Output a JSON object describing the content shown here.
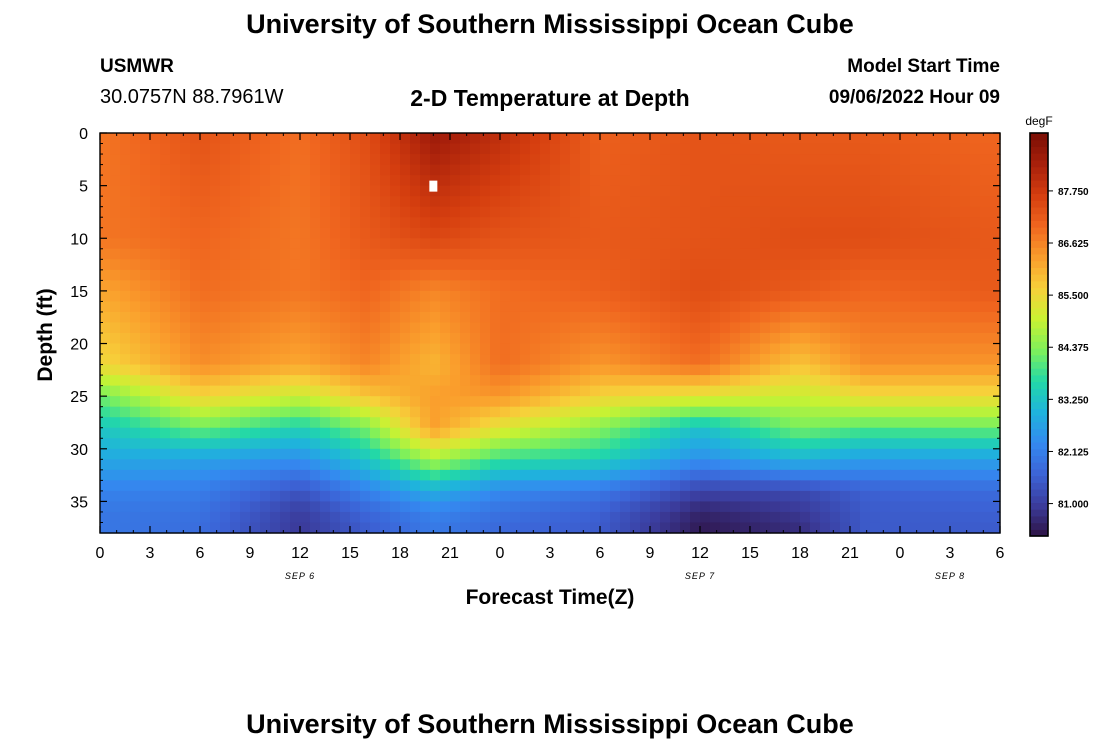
{
  "header": {
    "title": "University of Southern Mississippi Ocean Cube",
    "station": "USMWR",
    "coordinates": "30.0757N  88.7961W",
    "subtitle": "2-D Temperature at Depth",
    "model_start_label": "Model Start Time",
    "model_start_value": "09/06/2022 Hour 09"
  },
  "footer": {
    "title": "University of Southern Mississippi Ocean Cube"
  },
  "colormap": [
    "#2e1243",
    "#3b3c9c",
    "#3c63d6",
    "#3489f0",
    "#1fb3dc",
    "#22d8a8",
    "#7ef05b",
    "#c9f232",
    "#f7d03a",
    "#fa9d2c",
    "#f0661f",
    "#d53e0f",
    "#a8200b",
    "#7a0e04"
  ],
  "chart_data": {
    "type": "heatmap",
    "xlabel": "Forecast Time(Z)",
    "ylabel": "Depth (ft)",
    "x_tick_labels": [
      "0",
      "3",
      "6",
      "9",
      "12",
      "15",
      "18",
      "21",
      "0",
      "3",
      "6",
      "9",
      "12",
      "15",
      "18",
      "21",
      "0",
      "3",
      "6"
    ],
    "x_range_hours": [
      0,
      54
    ],
    "date_labels": [
      {
        "label": "SEP 6",
        "hour": 12
      },
      {
        "label": "SEP 7",
        "hour": 36
      },
      {
        "label": "SEP 8",
        "hour": 51
      }
    ],
    "y_tick_labels": [
      "0",
      "5",
      "10",
      "15",
      "20",
      "25",
      "30",
      "35"
    ],
    "y_range_ft": [
      0,
      38
    ],
    "y_inverted": true,
    "colorbar": {
      "unit": "degF",
      "tick_labels": [
        "87.750",
        "86.625",
        "85.500",
        "84.375",
        "83.250",
        "82.125",
        "81.000"
      ],
      "tick_values": [
        87.75,
        86.625,
        85.5,
        84.375,
        83.25,
        82.125,
        81.0
      ],
      "range": [
        80.3,
        89.0
      ]
    },
    "marker": {
      "hour": 20,
      "depth_ft": 5
    },
    "profiles": {
      "depths_ft": [
        0,
        10,
        15,
        22,
        25,
        28,
        31,
        34,
        36,
        38
      ],
      "hours": [
        0,
        6,
        12,
        16,
        20,
        24,
        30,
        36,
        42,
        46,
        54
      ],
      "values_degF": [
        [
          86.8,
          86.8,
          86.2,
          85.5,
          84.2,
          83.3,
          82.8,
          82.2,
          82.0,
          82.0
        ],
        [
          87.3,
          87.0,
          86.9,
          86.5,
          85.6,
          84.2,
          82.7,
          82.1,
          81.9,
          81.8
        ],
        [
          86.9,
          86.8,
          86.8,
          86.2,
          85.0,
          83.5,
          82.4,
          81.4,
          81.0,
          80.9
        ],
        [
          87.4,
          87.2,
          87.0,
          86.6,
          85.8,
          84.3,
          83.3,
          82.2,
          81.7,
          81.5
        ],
        [
          88.5,
          87.5,
          86.6,
          86.0,
          86.3,
          86.3,
          84.7,
          82.9,
          82.2,
          82.0
        ],
        [
          88.0,
          87.3,
          86.9,
          86.9,
          86.4,
          85.3,
          83.8,
          82.3,
          81.9,
          81.7
        ],
        [
          87.1,
          87.2,
          87.1,
          86.4,
          85.6,
          84.4,
          83.5,
          82.0,
          81.6,
          81.5
        ],
        [
          87.3,
          87.3,
          87.4,
          86.9,
          85.3,
          83.2,
          82.4,
          81.1,
          80.6,
          80.4
        ],
        [
          87.2,
          87.4,
          87.2,
          85.8,
          85.0,
          84.3,
          83.0,
          81.2,
          80.9,
          80.7
        ],
        [
          87.2,
          87.4,
          87.0,
          86.5,
          85.5,
          84.0,
          82.6,
          81.6,
          81.5,
          81.5
        ],
        [
          87.0,
          87.2,
          87.2,
          86.4,
          85.5,
          84.2,
          82.7,
          81.8,
          81.6,
          81.5
        ]
      ]
    }
  }
}
